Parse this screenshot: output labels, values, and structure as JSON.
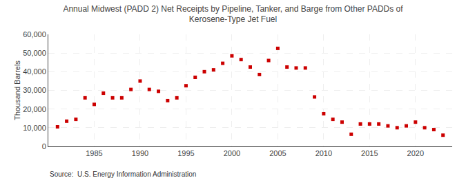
{
  "chart_data": {
    "type": "scatter",
    "title": "Annual Midwest (PADD 2) Net Receipts by Pipeline, Tanker, and Barge from Other PADDs of\nKerosene-Type Jet Fuel",
    "ylabel": "Thousand Barrels",
    "annotations": [
      "Source:  U.S. Energy Information Administration"
    ],
    "x": [
      1981,
      1982,
      1983,
      1984,
      1985,
      1986,
      1987,
      1988,
      1989,
      1990,
      1991,
      1992,
      1993,
      1994,
      1995,
      1996,
      1997,
      1998,
      1999,
      2000,
      2001,
      2002,
      2003,
      2004,
      2005,
      2006,
      2007,
      2008,
      2009,
      2010,
      2011,
      2012,
      2013,
      2014,
      2015,
      2016,
      2017,
      2018,
      2019,
      2020,
      2021,
      2022,
      2023
    ],
    "values": [
      10500,
      13500,
      14500,
      26000,
      22500,
      28500,
      26000,
      26000,
      30500,
      35000,
      30500,
      29500,
      24500,
      26000,
      32500,
      37000,
      40000,
      41000,
      44500,
      48500,
      46500,
      42500,
      38500,
      46000,
      52500,
      42500,
      42000,
      42000,
      26500,
      17500,
      14500,
      13000,
      6500,
      12000,
      12000,
      12000,
      11000,
      10000,
      11000,
      13000,
      10000,
      9000,
      6000
    ],
    "color": "#cc0000",
    "marker": "square",
    "xlim": [
      1980,
      2024
    ],
    "xticks": [
      1985,
      1990,
      1995,
      2000,
      2005,
      2010,
      2015,
      2020
    ],
    "ylim": [
      0,
      60000
    ],
    "yticks": [
      0,
      {
        "value": 10000,
        "label": "10,000"
      },
      {
        "value": 20000,
        "label": "20,000"
      },
      {
        "value": 30000,
        "label": "30,000"
      },
      {
        "value": 40000,
        "label": "40,000"
      },
      {
        "value": 50000,
        "label": "50,000"
      },
      {
        "value": 60000,
        "label": "60,000"
      }
    ],
    "grid": true
  }
}
